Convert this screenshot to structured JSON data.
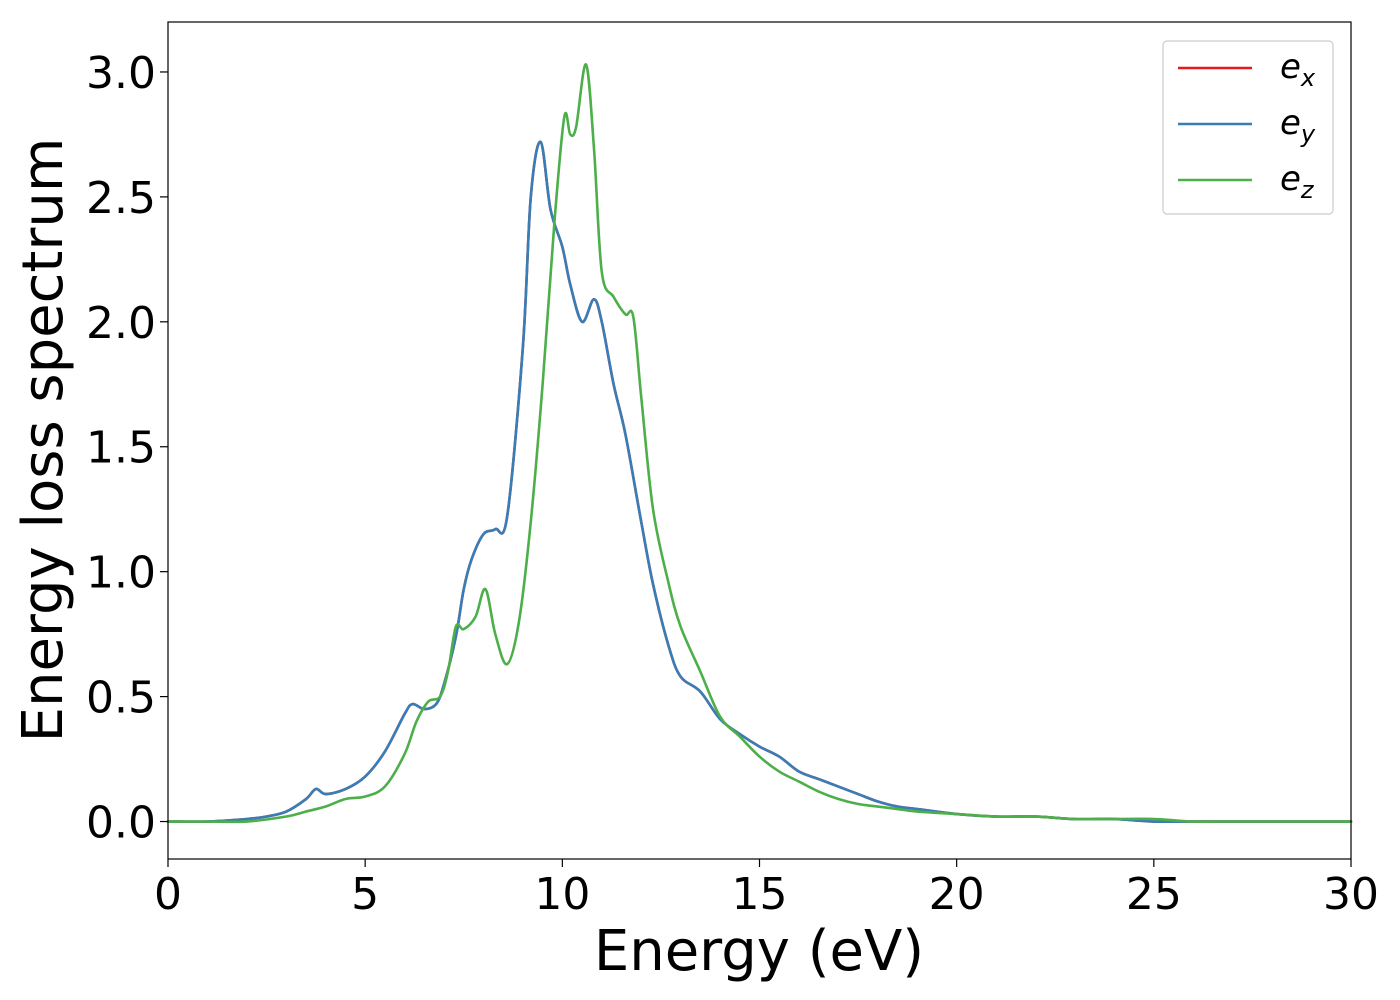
{
  "chart_data": {
    "type": "line",
    "xlabel": "Energy (eV)",
    "ylabel": "Energy loss spectrum",
    "xlim": [
      0,
      30
    ],
    "ylim": [
      -0.15,
      3.2
    ],
    "xticks": [
      0,
      5,
      10,
      15,
      20,
      25,
      30
    ],
    "xtick_labels": [
      "0",
      "5",
      "10",
      "15",
      "20",
      "25",
      "30"
    ],
    "yticks": [
      0.0,
      0.5,
      1.0,
      1.5,
      2.0,
      2.5,
      3.0
    ],
    "ytick_labels": [
      "0.0",
      "0.5",
      "1.0",
      "1.5",
      "2.0",
      "2.5",
      "3.0"
    ],
    "grid": false,
    "legend_position": "top-right",
    "legend": [
      {
        "base": "e",
        "sub": "x"
      },
      {
        "base": "e",
        "sub": "y"
      },
      {
        "base": "e",
        "sub": "z"
      }
    ],
    "series": [
      {
        "name": "e_x",
        "color": "#e41a1c",
        "x": [
          0,
          1,
          2,
          2.5,
          3,
          3.5,
          3.75,
          4,
          4.5,
          5,
          5.5,
          6,
          6.2,
          6.5,
          6.8,
          7,
          7.3,
          7.5,
          7.7,
          8,
          8.3,
          8.6,
          9,
          9.2,
          9.45,
          9.7,
          10,
          10.2,
          10.5,
          10.8,
          11,
          11.3,
          11.6,
          12,
          12.3,
          12.7,
          13,
          13.5,
          14,
          14.5,
          15,
          15.5,
          16,
          16.5,
          17,
          17.5,
          18,
          18.5,
          19,
          20,
          21,
          22,
          23,
          24,
          25,
          26,
          27,
          28,
          29,
          30
        ],
        "y": [
          0,
          0,
          0.01,
          0.02,
          0.04,
          0.09,
          0.13,
          0.11,
          0.13,
          0.18,
          0.28,
          0.43,
          0.47,
          0.45,
          0.47,
          0.55,
          0.74,
          0.93,
          1.05,
          1.15,
          1.17,
          1.22,
          1.9,
          2.5,
          2.72,
          2.45,
          2.3,
          2.15,
          2.0,
          2.09,
          2.0,
          1.75,
          1.55,
          1.2,
          0.95,
          0.7,
          0.58,
          0.52,
          0.41,
          0.35,
          0.3,
          0.26,
          0.2,
          0.17,
          0.14,
          0.11,
          0.08,
          0.06,
          0.05,
          0.03,
          0.02,
          0.02,
          0.01,
          0.01,
          0,
          0,
          0,
          0,
          0,
          0
        ]
      },
      {
        "name": "e_y",
        "color": "#377eb8",
        "x": [
          0,
          1,
          2,
          2.5,
          3,
          3.5,
          3.75,
          4,
          4.5,
          5,
          5.5,
          6,
          6.2,
          6.5,
          6.8,
          7,
          7.3,
          7.5,
          7.7,
          8,
          8.3,
          8.6,
          9,
          9.2,
          9.45,
          9.7,
          10,
          10.2,
          10.5,
          10.8,
          11,
          11.3,
          11.6,
          12,
          12.3,
          12.7,
          13,
          13.5,
          14,
          14.5,
          15,
          15.5,
          16,
          16.5,
          17,
          17.5,
          18,
          18.5,
          19,
          20,
          21,
          22,
          23,
          24,
          25,
          26,
          27,
          28,
          29,
          30
        ],
        "y": [
          0,
          0,
          0.01,
          0.02,
          0.04,
          0.09,
          0.13,
          0.11,
          0.13,
          0.18,
          0.28,
          0.43,
          0.47,
          0.45,
          0.47,
          0.55,
          0.74,
          0.93,
          1.05,
          1.15,
          1.17,
          1.22,
          1.9,
          2.5,
          2.72,
          2.45,
          2.3,
          2.15,
          2.0,
          2.09,
          2.0,
          1.75,
          1.55,
          1.2,
          0.95,
          0.7,
          0.58,
          0.52,
          0.41,
          0.35,
          0.3,
          0.26,
          0.2,
          0.17,
          0.14,
          0.11,
          0.08,
          0.06,
          0.05,
          0.03,
          0.02,
          0.02,
          0.01,
          0.01,
          0,
          0,
          0,
          0,
          0,
          0
        ]
      },
      {
        "name": "e_z",
        "color": "#4daf4a",
        "x": [
          0,
          1,
          2,
          3,
          3.5,
          4,
          4.5,
          5,
          5.5,
          6,
          6.3,
          6.6,
          6.9,
          7.1,
          7.3,
          7.5,
          7.8,
          8.05,
          8.3,
          8.6,
          8.9,
          9.2,
          9.5,
          9.8,
          10.05,
          10.2,
          10.35,
          10.6,
          10.8,
          11,
          11.3,
          11.6,
          11.8,
          12,
          12.3,
          12.7,
          13,
          13.5,
          14,
          14.5,
          15,
          15.5,
          16,
          16.5,
          17,
          17.5,
          18,
          18.5,
          19,
          20,
          21,
          22,
          23,
          24,
          25,
          26,
          27,
          28,
          29,
          30
        ],
        "y": [
          0,
          0,
          0,
          0.02,
          0.04,
          0.06,
          0.09,
          0.1,
          0.14,
          0.27,
          0.4,
          0.48,
          0.5,
          0.6,
          0.78,
          0.77,
          0.82,
          0.93,
          0.75,
          0.63,
          0.8,
          1.2,
          1.75,
          2.4,
          2.82,
          2.75,
          2.78,
          3.03,
          2.7,
          2.2,
          2.1,
          2.03,
          2.02,
          1.7,
          1.25,
          0.95,
          0.78,
          0.6,
          0.42,
          0.34,
          0.26,
          0.2,
          0.16,
          0.12,
          0.09,
          0.07,
          0.06,
          0.05,
          0.04,
          0.03,
          0.02,
          0.02,
          0.01,
          0.01,
          0.01,
          0,
          0,
          0,
          0,
          0
        ]
      }
    ]
  }
}
